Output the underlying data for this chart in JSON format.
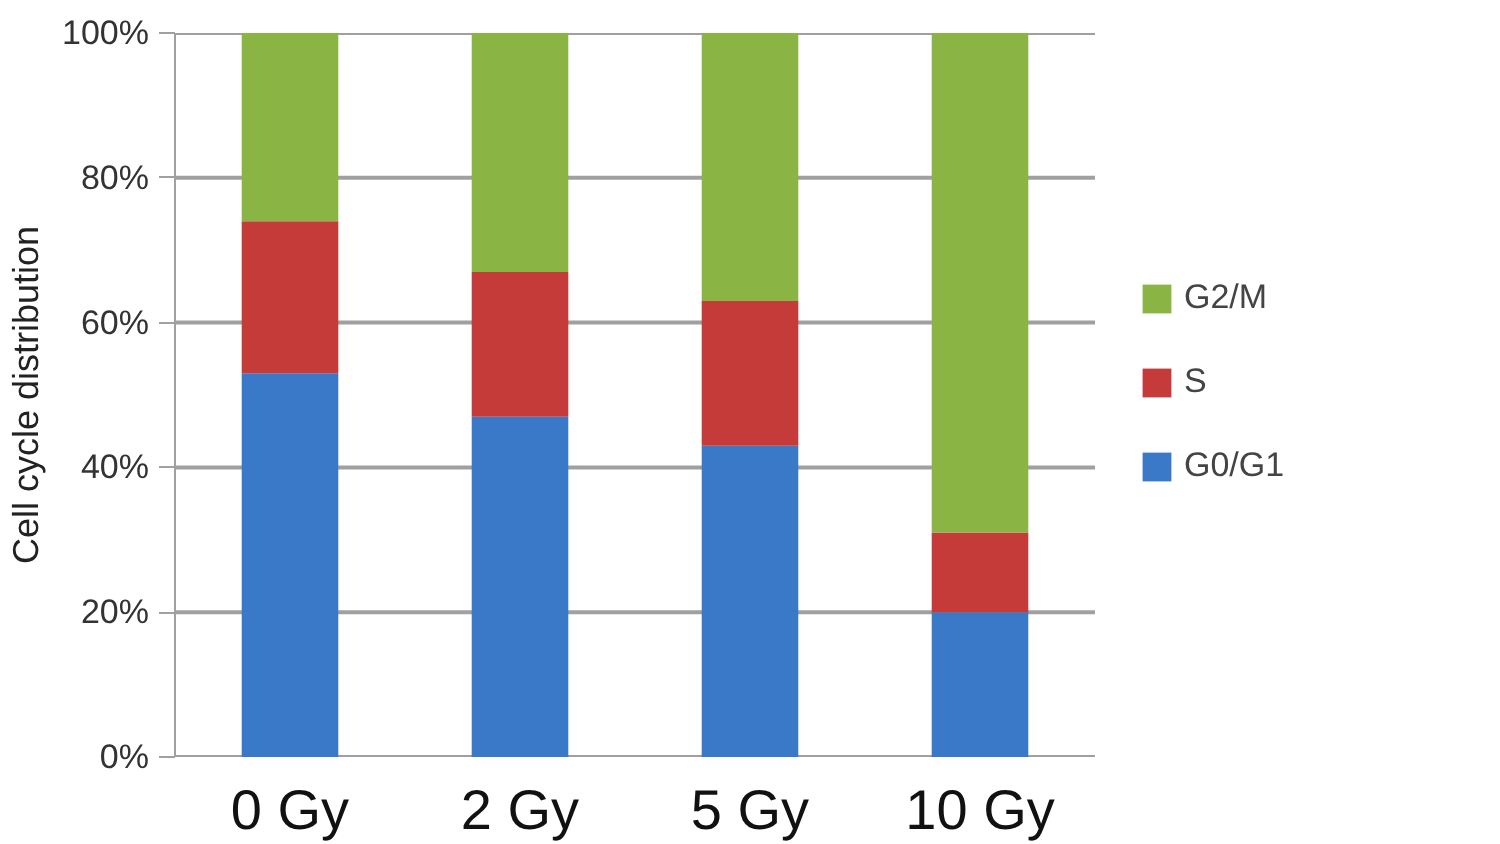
{
  "chart_data": {
    "type": "bar",
    "stacked": true,
    "ylabel": "Cell cycle distribution",
    "categories": [
      "0 Gy",
      "2 Gy",
      "5 Gy",
      "10 Gy"
    ],
    "series": [
      {
        "name": "G0/G1",
        "color": "#3a78c8",
        "values": [
          53,
          47,
          43,
          20
        ]
      },
      {
        "name": "S",
        "color": "#c43b3a",
        "values": [
          21,
          20,
          20,
          11
        ]
      },
      {
        "name": "G2/M",
        "color": "#8ab443",
        "values": [
          26,
          33,
          37,
          69
        ]
      }
    ],
    "ylim": [
      0,
      100
    ],
    "yticks": [
      {
        "value": 0,
        "label": "0%"
      },
      {
        "value": 20,
        "label": "20%"
      },
      {
        "value": 40,
        "label": "40%"
      },
      {
        "value": 60,
        "label": "60%"
      },
      {
        "value": 80,
        "label": "80%"
      },
      {
        "value": 100,
        "label": "100%"
      }
    ],
    "grid": "y",
    "legend": "right"
  }
}
